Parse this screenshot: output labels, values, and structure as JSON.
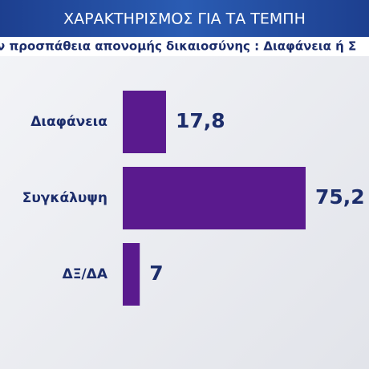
{
  "chart_data": {
    "type": "bar",
    "orientation": "horizontal",
    "title": "ΧΑΡΑΚΤΗΡΙΣΜΟΣ ΓΙΑ ΤΑ ΤΕΜΠΗ",
    "subtitle": "ν προσπάθεια απονομής δικαιοσύνης : Διαφάνεια  ή Σ",
    "categories": [
      "Διαφάνεια",
      "Συγκάλυψη",
      "ΔΞ/ΔΑ"
    ],
    "values": [
      17.8,
      75.2,
      7
    ],
    "value_labels": [
      "17,8",
      "75,2",
      "7"
    ],
    "color": "#5a1a8e"
  }
}
